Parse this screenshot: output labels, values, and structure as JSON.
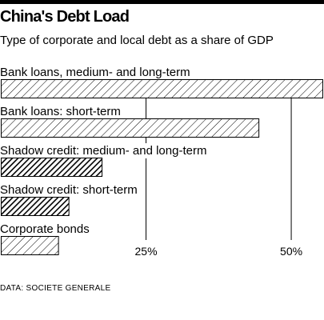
{
  "header": {
    "title": "China's Debt Load",
    "subtitle": "Type of corporate and local debt as a share of GDP"
  },
  "source": "DATA: SOCIETE GENERALE",
  "chart_data": {
    "type": "bar",
    "orientation": "horizontal",
    "categories": [
      "Bank loans, medium- and long-term",
      "Bank loans: short-term",
      "Shadow credit: medium- and long-term",
      "Shadow credit: short-term",
      "Corporate bonds"
    ],
    "values": [
      55.5,
      44.5,
      17.5,
      11.8,
      10.0
    ],
    "unit": "%",
    "styles": [
      "light-hatch",
      "light-hatch",
      "dark-hatch",
      "dark-hatch",
      "light-hatch"
    ],
    "ticks": [
      {
        "value": 25,
        "label": "25%"
      },
      {
        "value": 50,
        "label": "50%"
      }
    ],
    "xlim": [
      0,
      55.5
    ],
    "grid": true,
    "colors": {
      "bar_stroke": "#000000",
      "hatch": "#000000",
      "grid": "#000000"
    }
  }
}
